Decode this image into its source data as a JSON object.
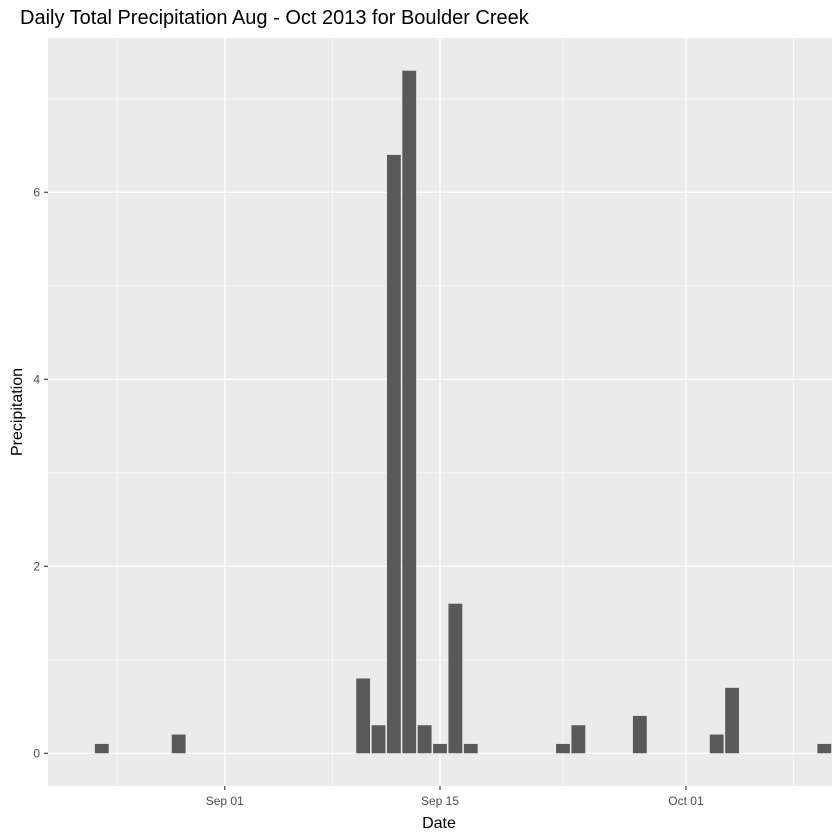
{
  "chart_data": {
    "type": "bar",
    "title": "Daily Total Precipitation Aug - Oct 2013 for Boulder Creek",
    "xlabel": "Date",
    "ylabel": "Precipitation",
    "xlim": [
      "2013-08-21",
      "2013-10-10"
    ],
    "ylim": [
      -0.35,
      7.65
    ],
    "x_ticks": [
      {
        "date": "2013-09-01",
        "label": "Sep 01"
      },
      {
        "date": "2013-09-15",
        "label": "Sep 15"
      },
      {
        "date": "2013-10-01",
        "label": "Oct 01"
      }
    ],
    "x_minor_ticks": [
      "2013-08-25",
      "2013-09-08",
      "2013-09-23",
      "2013-10-08"
    ],
    "y_ticks": [
      0,
      2,
      4,
      6
    ],
    "y_minor_ticks": [
      1,
      3,
      5,
      7
    ],
    "grid": true,
    "bar_color": "#595959",
    "panel_color": "#ebebeb",
    "grid_color": "#ffffff",
    "points": [
      {
        "date": "2013-08-24",
        "value": 0.1
      },
      {
        "date": "2013-08-29",
        "value": 0.2
      },
      {
        "date": "2013-09-08",
        "value": 0.0
      },
      {
        "date": "2013-09-09",
        "value": 0.0
      },
      {
        "date": "2013-09-10",
        "value": 0.8
      },
      {
        "date": "2013-09-11",
        "value": 0.3
      },
      {
        "date": "2013-09-12",
        "value": 6.4
      },
      {
        "date": "2013-09-13",
        "value": 7.3
      },
      {
        "date": "2013-09-14",
        "value": 0.3
      },
      {
        "date": "2013-09-15",
        "value": 0.1
      },
      {
        "date": "2013-09-16",
        "value": 1.6
      },
      {
        "date": "2013-09-17",
        "value": 0.1
      },
      {
        "date": "2013-09-23",
        "value": 0.1
      },
      {
        "date": "2013-09-24",
        "value": 0.3
      },
      {
        "date": "2013-09-28",
        "value": 0.4
      },
      {
        "date": "2013-10-03",
        "value": 0.2
      },
      {
        "date": "2013-10-04",
        "value": 0.7
      },
      {
        "date": "2013-10-10",
        "value": 0.1
      }
    ]
  }
}
